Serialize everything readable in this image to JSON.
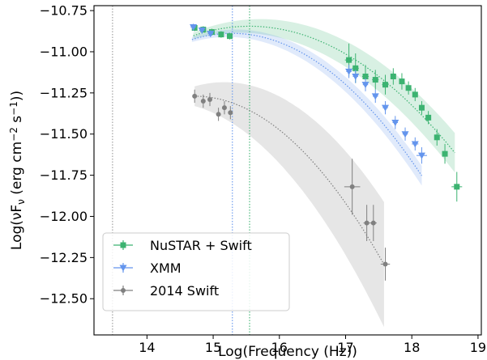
{
  "chart_data": {
    "type": "scatter",
    "title": "",
    "xlabel": "Log(Frequency (Hz))",
    "ylabel_parts": [
      "Log(",
      "νF",
      "ν",
      " (erg cm",
      "−2",
      " s",
      "−1",
      "))"
    ],
    "xlim": [
      13.2,
      19.05
    ],
    "ylim": [
      -12.72,
      -10.72
    ],
    "x_ticks": [
      14,
      15,
      16,
      17,
      18,
      19
    ],
    "x_tick_labels": [
      "14",
      "15",
      "16",
      "17",
      "18",
      "19"
    ],
    "y_ticks": [
      -10.75,
      -11.0,
      -11.25,
      -11.5,
      -11.75,
      -12.0,
      -12.25,
      -12.5
    ],
    "y_tick_labels": [
      "−10.75",
      "−11.00",
      "−11.25",
      "−11.50",
      "−11.75",
      "−12.00",
      "−12.25",
      "−12.50"
    ],
    "grid": false,
    "legend_position": "bottom-left",
    "vertical_lines": [
      {
        "x": 13.48,
        "color": "#999999"
      },
      {
        "x": 15.29,
        "color": "#6495ed"
      },
      {
        "x": 15.55,
        "color": "#3cb371"
      }
    ],
    "series": [
      {
        "name": "NuSTAR + Swift",
        "color": "#3cb371",
        "marker": "square",
        "model": {
          "peak_x": 15.55,
          "peak_y": -10.845,
          "curvature": 0.08,
          "x_range": [
            14.7,
            18.65
          ],
          "band": [
            0.02,
            0.12
          ]
        },
        "points": [
          {
            "x": 14.72,
            "y": -10.855,
            "xerr": 0.04,
            "yerr": 0.02
          },
          {
            "x": 14.85,
            "y": -10.865,
            "xerr": 0.04,
            "yerr": 0.02
          },
          {
            "x": 14.98,
            "y": -10.88,
            "xerr": 0.04,
            "yerr": 0.02
          },
          {
            "x": 15.12,
            "y": -10.895,
            "xerr": 0.04,
            "yerr": 0.02
          },
          {
            "x": 15.25,
            "y": -10.905,
            "xerr": 0.04,
            "yerr": 0.02
          },
          {
            "x": 17.05,
            "y": -11.05,
            "xerr": 0.06,
            "yerr": 0.1
          },
          {
            "x": 17.15,
            "y": -11.1,
            "xerr": 0.05,
            "yerr": 0.09
          },
          {
            "x": 17.3,
            "y": -11.15,
            "xerr": 0.05,
            "yerr": 0.07
          },
          {
            "x": 17.45,
            "y": -11.17,
            "xerr": 0.05,
            "yerr": 0.06
          },
          {
            "x": 17.6,
            "y": -11.2,
            "xerr": 0.05,
            "yerr": 0.06
          },
          {
            "x": 17.72,
            "y": -11.15,
            "xerr": 0.04,
            "yerr": 0.05
          },
          {
            "x": 17.85,
            "y": -11.18,
            "xerr": 0.04,
            "yerr": 0.05
          },
          {
            "x": 17.95,
            "y": -11.22,
            "xerr": 0.03,
            "yerr": 0.04
          },
          {
            "x": 18.05,
            "y": -11.26,
            "xerr": 0.03,
            "yerr": 0.04
          },
          {
            "x": 18.15,
            "y": -11.34,
            "xerr": 0.03,
            "yerr": 0.04
          },
          {
            "x": 18.25,
            "y": -11.4,
            "xerr": 0.03,
            "yerr": 0.04
          },
          {
            "x": 18.38,
            "y": -11.52,
            "xerr": 0.04,
            "yerr": 0.05
          },
          {
            "x": 18.5,
            "y": -11.62,
            "xerr": 0.04,
            "yerr": 0.06
          },
          {
            "x": 18.68,
            "y": -11.82,
            "xerr": 0.08,
            "yerr": 0.09
          }
        ]
      },
      {
        "name": "XMM",
        "color": "#6495ed",
        "marker": "triangle-down",
        "model": {
          "peak_x": 15.28,
          "peak_y": -10.888,
          "curvature": 0.105,
          "x_range": [
            14.68,
            18.15
          ],
          "band": [
            0.015,
            0.06
          ]
        },
        "points": [
          {
            "x": 14.7,
            "y": -10.85,
            "xerr": 0.04,
            "yerr": 0.02
          },
          {
            "x": 14.83,
            "y": -10.87,
            "xerr": 0.04,
            "yerr": 0.02
          },
          {
            "x": 14.96,
            "y": -10.89,
            "xerr": 0.04,
            "yerr": 0.02
          },
          {
            "x": 17.05,
            "y": -11.12,
            "xerr": 0.04,
            "yerr": 0.04
          },
          {
            "x": 17.15,
            "y": -11.15,
            "xerr": 0.04,
            "yerr": 0.04
          },
          {
            "x": 17.3,
            "y": -11.2,
            "xerr": 0.04,
            "yerr": 0.04
          },
          {
            "x": 17.45,
            "y": -11.27,
            "xerr": 0.04,
            "yerr": 0.04
          },
          {
            "x": 17.6,
            "y": -11.34,
            "xerr": 0.04,
            "yerr": 0.04
          },
          {
            "x": 17.75,
            "y": -11.43,
            "xerr": 0.04,
            "yerr": 0.04
          },
          {
            "x": 17.9,
            "y": -11.5,
            "xerr": 0.04,
            "yerr": 0.04
          },
          {
            "x": 18.05,
            "y": -11.56,
            "xerr": 0.05,
            "yerr": 0.04
          },
          {
            "x": 18.15,
            "y": -11.63,
            "xerr": 0.08,
            "yerr": 0.05
          }
        ]
      },
      {
        "name": "2014 Swift",
        "color": "#808080",
        "marker": "circle",
        "model": {
          "peak_x": 14.72,
          "peak_y": -11.27,
          "curvature": 0.125,
          "x_range": [
            14.72,
            17.58
          ],
          "band": [
            0.06,
            0.38
          ]
        },
        "points": [
          {
            "x": 14.72,
            "y": -11.27,
            "xerr": 0.03,
            "yerr": 0.04
          },
          {
            "x": 14.85,
            "y": -11.3,
            "xerr": 0.03,
            "yerr": 0.04
          },
          {
            "x": 14.95,
            "y": -11.29,
            "xerr": 0.03,
            "yerr": 0.04
          },
          {
            "x": 15.08,
            "y": -11.38,
            "xerr": 0.03,
            "yerr": 0.04
          },
          {
            "x": 15.17,
            "y": -11.34,
            "xerr": 0.03,
            "yerr": 0.04
          },
          {
            "x": 15.26,
            "y": -11.37,
            "xerr": 0.03,
            "yerr": 0.04
          },
          {
            "x": 17.1,
            "y": -11.82,
            "xerr": 0.12,
            "yerr": 0.17
          },
          {
            "x": 17.32,
            "y": -12.04,
            "xerr": 0.05,
            "yerr": 0.11
          },
          {
            "x": 17.42,
            "y": -12.04,
            "xerr": 0.05,
            "yerr": 0.11
          },
          {
            "x": 17.6,
            "y": -12.29,
            "xerr": 0.07,
            "yerr": 0.1
          }
        ]
      }
    ]
  }
}
